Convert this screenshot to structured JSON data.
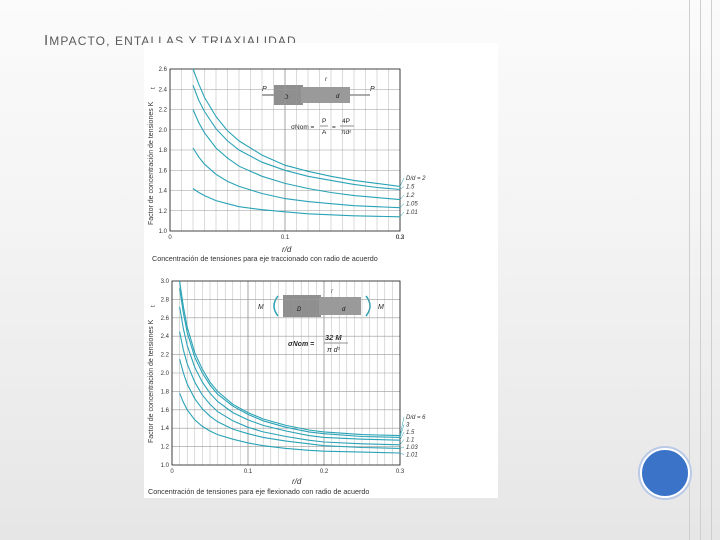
{
  "slide": {
    "title_first_letter": "I",
    "title_rest": "MPACTO, ENTALLAS Y TRIAXIALIDAD"
  },
  "chart_data": [
    {
      "type": "line",
      "caption": "Concentración de tensiones para eje traccionado con radio de acuerdo",
      "ylabel": "Factor de concentración de tensiones K",
      "ylabel_sub": "t",
      "xlabel": "r/d",
      "xlim": [
        0,
        0.2
      ],
      "ylim": [
        1.0,
        2.6
      ],
      "x_ticks": [
        "0",
        "0.1",
        "0.2",
        "0.3"
      ],
      "y_ticks": [
        "1.0",
        "1.2",
        "1.4",
        "1.6",
        "1.8",
        "2.0",
        "2.2",
        "2.4",
        "2.6"
      ],
      "grid": true,
      "load_symbol": "P",
      "dim_labels": [
        "D",
        "d",
        "r"
      ],
      "formula_lhs": "σNom =",
      "formula_num1": "P",
      "formula_den1": "A",
      "formula_eq2": "=",
      "formula_num2": "4P",
      "formula_den2": "πd²",
      "series": [
        {
          "name": "D/d = 2",
          "x": [
            0.02,
            0.025,
            0.03,
            0.04,
            0.05,
            0.06,
            0.08,
            0.1,
            0.12,
            0.14,
            0.16,
            0.18,
            0.2
          ],
          "y": [
            2.62,
            2.45,
            2.32,
            2.13,
            1.99,
            1.89,
            1.75,
            1.65,
            1.59,
            1.54,
            1.5,
            1.47,
            1.44
          ]
        },
        {
          "name": "1.5",
          "x": [
            0.02,
            0.025,
            0.03,
            0.04,
            0.05,
            0.06,
            0.08,
            0.1,
            0.12,
            0.14,
            0.16,
            0.18,
            0.2
          ],
          "y": [
            2.44,
            2.29,
            2.18,
            2.01,
            1.89,
            1.8,
            1.68,
            1.6,
            1.54,
            1.5,
            1.46,
            1.43,
            1.41
          ]
        },
        {
          "name": "1.2",
          "x": [
            0.02,
            0.025,
            0.03,
            0.04,
            0.05,
            0.06,
            0.08,
            0.1,
            0.12,
            0.14,
            0.16,
            0.18,
            0.2
          ],
          "y": [
            2.2,
            2.07,
            1.97,
            1.82,
            1.72,
            1.64,
            1.54,
            1.47,
            1.42,
            1.38,
            1.35,
            1.33,
            1.31
          ]
        },
        {
          "name": "1.05",
          "x": [
            0.02,
            0.025,
            0.03,
            0.04,
            0.05,
            0.06,
            0.08,
            0.1,
            0.12,
            0.14,
            0.16,
            0.18,
            0.2
          ],
          "y": [
            1.82,
            1.73,
            1.66,
            1.56,
            1.49,
            1.44,
            1.37,
            1.32,
            1.29,
            1.27,
            1.25,
            1.24,
            1.23
          ]
        },
        {
          "name": "1.01",
          "x": [
            0.02,
            0.025,
            0.03,
            0.04,
            0.05,
            0.06,
            0.08,
            0.1,
            0.12,
            0.14,
            0.16,
            0.18,
            0.2
          ],
          "y": [
            1.42,
            1.38,
            1.35,
            1.3,
            1.27,
            1.24,
            1.21,
            1.19,
            1.17,
            1.16,
            1.15,
            1.145,
            1.14
          ]
        }
      ]
    },
    {
      "type": "line",
      "caption": "Concentración de tensiones para eje flexionado con radio de acuerdo",
      "ylabel": "Factor de concentración de tensiones K",
      "ylabel_sub": "t",
      "xlabel": "r/d",
      "xlim": [
        0,
        0.3
      ],
      "ylim": [
        1.0,
        3.0
      ],
      "x_ticks": [
        "0",
        "0.1",
        "0.2",
        "0.3"
      ],
      "y_ticks": [
        "1.0",
        "1.2",
        "1.4",
        "1.6",
        "1.8",
        "2.0",
        "2.2",
        "2.4",
        "2.6",
        "2.8",
        "3.0"
      ],
      "grid": true,
      "load_symbol": "M",
      "dim_labels": [
        "D",
        "d",
        "r"
      ],
      "formula_lhs": "σNom =",
      "formula_num1": "32 M",
      "formula_den1": "π d³",
      "series": [
        {
          "name": "D/d = 6",
          "x": [
            0.01,
            0.015,
            0.02,
            0.03,
            0.04,
            0.05,
            0.06,
            0.08,
            0.1,
            0.12,
            0.15,
            0.18,
            0.2,
            0.25,
            0.3
          ],
          "y": [
            3.0,
            2.72,
            2.5,
            2.22,
            2.04,
            1.9,
            1.8,
            1.66,
            1.57,
            1.5,
            1.43,
            1.38,
            1.36,
            1.33,
            1.32
          ]
        },
        {
          "name": "3",
          "x": [
            0.01,
            0.015,
            0.02,
            0.03,
            0.04,
            0.05,
            0.06,
            0.08,
            0.1,
            0.12,
            0.15,
            0.18,
            0.2,
            0.25,
            0.3
          ],
          "y": [
            2.92,
            2.65,
            2.44,
            2.17,
            2.0,
            1.87,
            1.77,
            1.64,
            1.55,
            1.48,
            1.41,
            1.36,
            1.34,
            1.31,
            1.3
          ]
        },
        {
          "name": "1.5",
          "x": [
            0.01,
            0.015,
            0.02,
            0.03,
            0.04,
            0.05,
            0.06,
            0.08,
            0.1,
            0.12,
            0.15,
            0.18,
            0.2,
            0.25,
            0.3
          ],
          "y": [
            2.72,
            2.48,
            2.3,
            2.06,
            1.9,
            1.78,
            1.69,
            1.57,
            1.49,
            1.43,
            1.37,
            1.32,
            1.3,
            1.28,
            1.27
          ]
        },
        {
          "name": "1.1",
          "x": [
            0.01,
            0.015,
            0.02,
            0.03,
            0.04,
            0.05,
            0.06,
            0.08,
            0.1,
            0.12,
            0.15,
            0.18,
            0.2,
            0.25,
            0.3
          ],
          "y": [
            2.45,
            2.25,
            2.1,
            1.9,
            1.76,
            1.66,
            1.58,
            1.48,
            1.41,
            1.36,
            1.31,
            1.27,
            1.25,
            1.23,
            1.22
          ]
        },
        {
          "name": "1.03",
          "x": [
            0.01,
            0.015,
            0.02,
            0.03,
            0.04,
            0.05,
            0.06,
            0.08,
            0.1,
            0.12,
            0.15,
            0.18,
            0.2,
            0.25,
            0.3
          ],
          "y": [
            2.15,
            2.0,
            1.88,
            1.72,
            1.61,
            1.53,
            1.47,
            1.39,
            1.34,
            1.3,
            1.26,
            1.23,
            1.21,
            1.19,
            1.18
          ]
        },
        {
          "name": "1.01",
          "x": [
            0.01,
            0.015,
            0.02,
            0.03,
            0.04,
            0.05,
            0.06,
            0.08,
            0.1,
            0.12,
            0.15,
            0.18,
            0.2,
            0.25,
            0.3
          ],
          "y": [
            1.78,
            1.68,
            1.6,
            1.49,
            1.42,
            1.37,
            1.33,
            1.28,
            1.24,
            1.21,
            1.18,
            1.16,
            1.15,
            1.14,
            1.13
          ]
        }
      ]
    }
  ],
  "colors": {
    "curve": "#2aa3b6",
    "grid": "#9a9a9a",
    "axis": "#222222",
    "text": "#333333",
    "shaft_fill": "#8f8f8f",
    "accent_circle": "#3b73c9"
  }
}
